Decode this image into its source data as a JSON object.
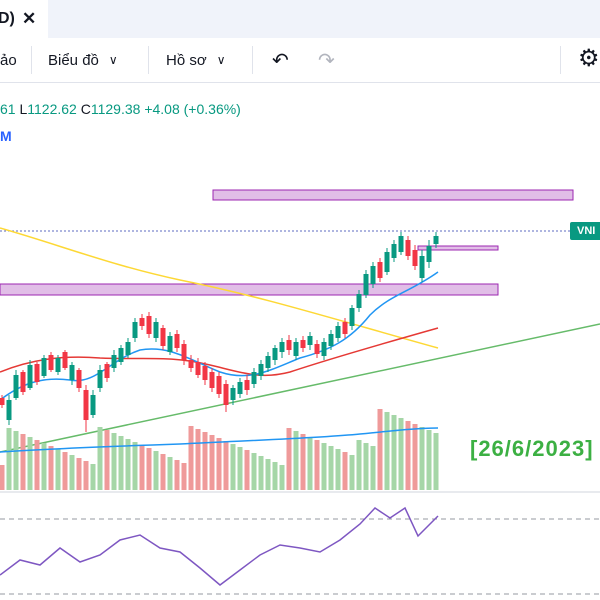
{
  "tab": {
    "title": "D)",
    "close": "✕"
  },
  "toolbar": {
    "item_0": "ảo",
    "chart_menu": "Biểu đồ",
    "profile_menu": "Hồ sơ",
    "undo": "↶",
    "redo": "↷",
    "settings": "⚙"
  },
  "legend": {
    "open_tail": "61",
    "low_label": "L",
    "low_value": "1122.62",
    "close_label": "C",
    "close_value": "1129.38",
    "change": "+4.08 (+0.36%)",
    "second_line": "M"
  },
  "price_tag": "VNI",
  "annotation": {
    "date": "[26/6/2023]"
  },
  "colors": {
    "up": "#089981",
    "down": "#f23645",
    "zone": "#e1bee7",
    "zone_border": "#9c27b0",
    "ma_blue": "#2196f3",
    "ma_red": "#e53935",
    "ma_yellow": "#fdd835",
    "trendline": "#66bb6a",
    "volume_up": "#a5d6a7",
    "volume_down": "#ef9a9a",
    "rsi": "#7e57c2",
    "annotation_text": "#3cb043"
  }
}
